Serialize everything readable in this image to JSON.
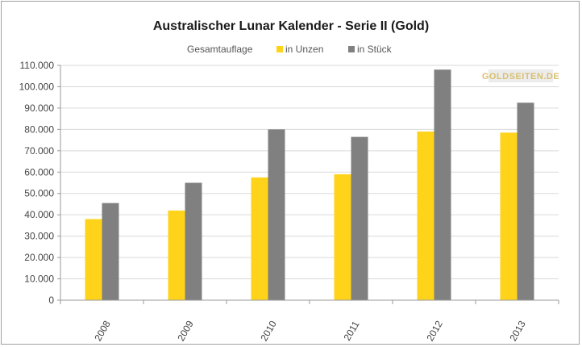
{
  "chart_data": {
    "type": "bar",
    "title": "Australischer Lunar Kalender - Serie II (Gold)",
    "legend_title": "Gesamtauflage",
    "legend_position": "top",
    "categories": [
      "2008",
      "2009",
      "2010",
      "2011",
      "2012",
      "2013"
    ],
    "series": [
      {
        "name": "in Unzen",
        "color": "#ffd31a",
        "values": [
          38000,
          42000,
          57500,
          59000,
          79000,
          78500
        ]
      },
      {
        "name": "in Stück",
        "color": "#808080",
        "values": [
          45500,
          55000,
          80000,
          76500,
          108000,
          92500
        ]
      }
    ],
    "ylim": [
      0,
      110000
    ],
    "yticks": [
      "0",
      "10.000",
      "20.000",
      "30.000",
      "40.000",
      "50.000",
      "60.000",
      "70.000",
      "80.000",
      "90.000",
      "100.000",
      "110.000"
    ],
    "grid": true,
    "watermark": "GOLDSEITEN.DE"
  }
}
